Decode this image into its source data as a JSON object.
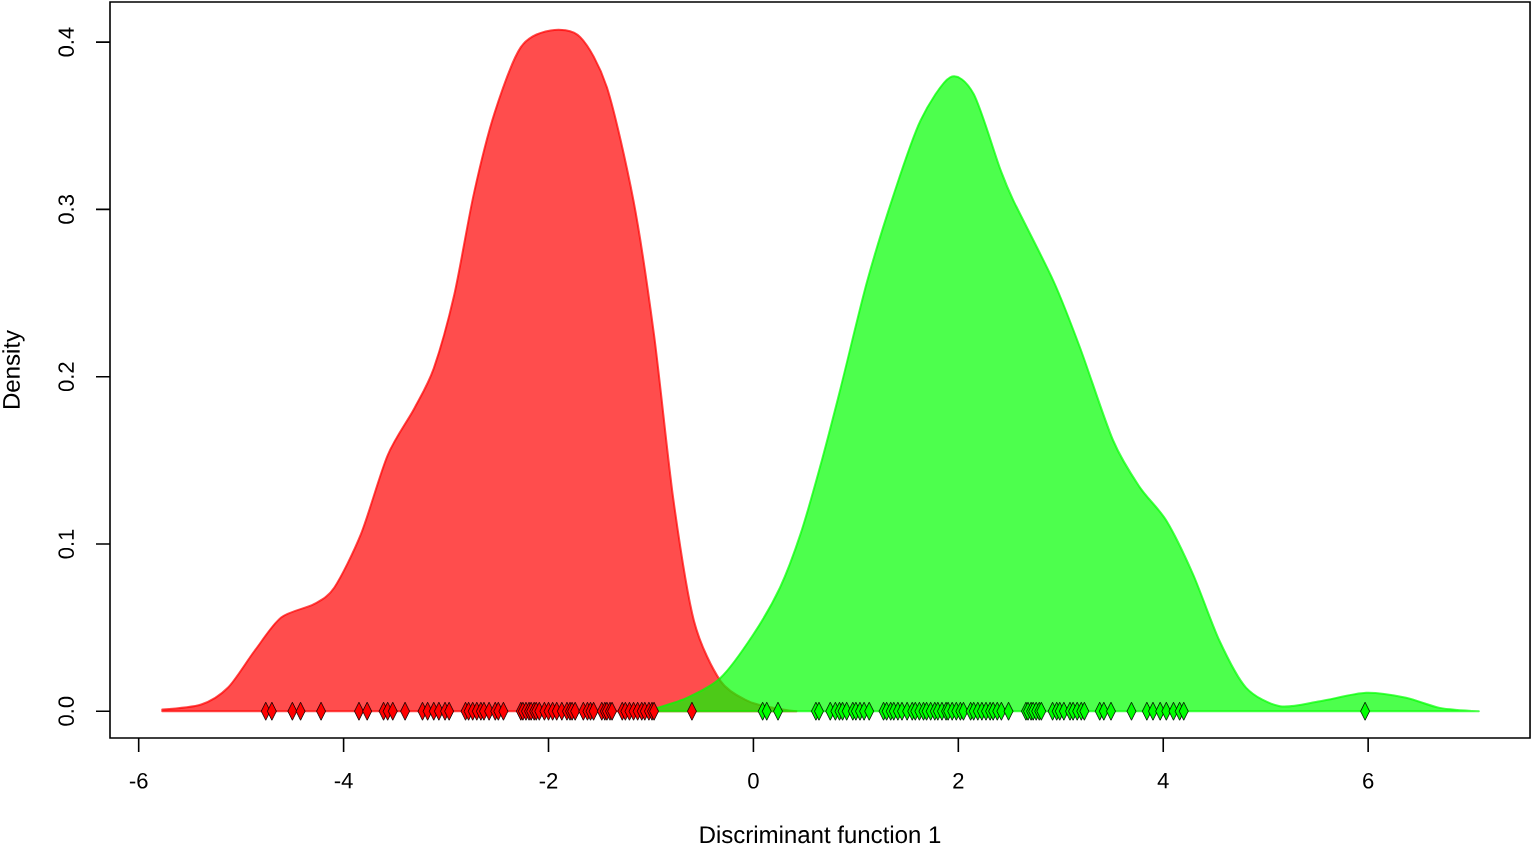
{
  "chart_data": {
    "type": "area",
    "xlabel": "Discriminant function 1",
    "ylabel": "Density",
    "xlim": [
      -6.28,
      7.58
    ],
    "ylim": [
      -0.016,
      0.424
    ],
    "xticks": [
      -6,
      -4,
      -2,
      0,
      2,
      4,
      6
    ],
    "yticks": [
      {
        "value": 0,
        "label": "0.0"
      },
      0.1,
      0.2,
      0.3,
      0.4
    ],
    "series": [
      {
        "color": "#ff4d4d",
        "x": [
          -5.77,
          -5.39,
          -5.13,
          -4.87,
          -4.61,
          -4.29,
          -4.09,
          -3.83,
          -3.57,
          -3.31,
          -3.12,
          -2.92,
          -2.73,
          -2.53,
          -2.27,
          -1.98,
          -1.69,
          -1.43,
          -1.17,
          -0.97,
          -0.78,
          -0.58,
          -0.32,
          -0.05,
          0.2,
          0.42
        ],
        "values": [
          0.001,
          0.004,
          0.014,
          0.036,
          0.056,
          0.064,
          0.074,
          0.106,
          0.153,
          0.181,
          0.205,
          0.249,
          0.309,
          0.357,
          0.397,
          0.407,
          0.403,
          0.373,
          0.305,
          0.225,
          0.126,
          0.054,
          0.018,
          0.006,
          0.002,
          0.0
        ]
      },
      {
        "color": "#4dff4d",
        "x": [
          -1.0,
          -0.65,
          -0.32,
          0.0,
          0.26,
          0.46,
          0.65,
          0.85,
          1.11,
          1.37,
          1.63,
          1.92,
          2.15,
          2.41,
          2.54,
          2.93,
          3.19,
          3.51,
          3.77,
          4.03,
          4.29,
          4.55,
          4.81,
          5.14,
          5.53,
          5.98,
          6.37,
          6.7,
          7.08
        ],
        "values": [
          0.001,
          0.008,
          0.02,
          0.046,
          0.074,
          0.106,
          0.146,
          0.193,
          0.257,
          0.309,
          0.353,
          0.379,
          0.369,
          0.324,
          0.305,
          0.257,
          0.217,
          0.162,
          0.134,
          0.114,
          0.082,
          0.042,
          0.014,
          0.003,
          0.006,
          0.011,
          0.008,
          0.002,
          0.0
        ]
      },
      {
        "type": "scatter",
        "marker": "diamond",
        "color": "#ff0000",
        "x": [
          -4.76,
          -4.7,
          -4.5,
          -4.42,
          -4.22,
          -3.85,
          -3.77,
          -3.61,
          -3.57,
          -3.52,
          -3.4,
          -3.23,
          -3.18,
          -3.12,
          -3.07,
          -3.01,
          -2.97,
          -2.81,
          -2.78,
          -2.74,
          -2.7,
          -2.66,
          -2.63,
          -2.58,
          -2.52,
          -2.49,
          -2.44,
          -2.27,
          -2.25,
          -2.22,
          -2.19,
          -2.17,
          -2.14,
          -2.12,
          -2.09,
          -2.04,
          -2.0,
          -1.96,
          -1.92,
          -1.87,
          -1.82,
          -1.79,
          -1.77,
          -1.74,
          -1.66,
          -1.62,
          -1.59,
          -1.56,
          -1.48,
          -1.45,
          -1.43,
          -1.4,
          -1.38,
          -1.28,
          -1.25,
          -1.21,
          -1.17,
          -1.13,
          -1.09,
          -1.06,
          -1.02,
          -0.99,
          -0.97,
          -0.6
        ],
        "values": [
          0,
          0,
          0,
          0,
          0,
          0,
          0,
          0,
          0,
          0,
          0,
          0,
          0,
          0,
          0,
          0,
          0,
          0,
          0,
          0,
          0,
          0,
          0,
          0,
          0,
          0,
          0,
          0,
          0,
          0,
          0,
          0,
          0,
          0,
          0,
          0,
          0,
          0,
          0,
          0,
          0,
          0,
          0,
          0,
          0,
          0,
          0,
          0,
          0,
          0,
          0,
          0,
          0,
          0,
          0,
          0,
          0,
          0,
          0,
          0,
          0,
          0,
          0,
          0
        ]
      },
      {
        "type": "scatter",
        "marker": "diamond",
        "color": "#00ff00",
        "x": [
          0.09,
          0.13,
          0.24,
          0.61,
          0.64,
          0.75,
          0.8,
          0.84,
          0.87,
          0.91,
          0.97,
          1.0,
          1.04,
          1.08,
          1.13,
          1.27,
          1.3,
          1.34,
          1.37,
          1.41,
          1.45,
          1.5,
          1.55,
          1.58,
          1.62,
          1.66,
          1.69,
          1.73,
          1.77,
          1.8,
          1.84,
          1.88,
          1.9,
          1.94,
          1.98,
          2.02,
          2.05,
          2.12,
          2.15,
          2.19,
          2.23,
          2.27,
          2.31,
          2.34,
          2.38,
          2.42,
          2.49,
          2.66,
          2.68,
          2.71,
          2.73,
          2.76,
          2.79,
          2.81,
          2.92,
          2.96,
          2.99,
          3.03,
          3.09,
          3.12,
          3.16,
          3.2,
          3.23,
          3.38,
          3.42,
          3.49,
          3.69,
          3.84,
          3.9,
          3.97,
          4.03,
          4.1,
          4.16,
          4.2,
          5.97
        ],
        "values": [
          0,
          0,
          0,
          0,
          0,
          0,
          0,
          0,
          0,
          0,
          0,
          0,
          0,
          0,
          0,
          0,
          0,
          0,
          0,
          0,
          0,
          0,
          0,
          0,
          0,
          0,
          0,
          0,
          0,
          0,
          0,
          0,
          0,
          0,
          0,
          0,
          0,
          0,
          0,
          0,
          0,
          0,
          0,
          0,
          0,
          0,
          0,
          0,
          0,
          0,
          0,
          0,
          0,
          0,
          0,
          0,
          0,
          0,
          0,
          0,
          0,
          0,
          0,
          0,
          0,
          0,
          0,
          0,
          0,
          0,
          0,
          0,
          0,
          0,
          0
        ]
      }
    ]
  }
}
